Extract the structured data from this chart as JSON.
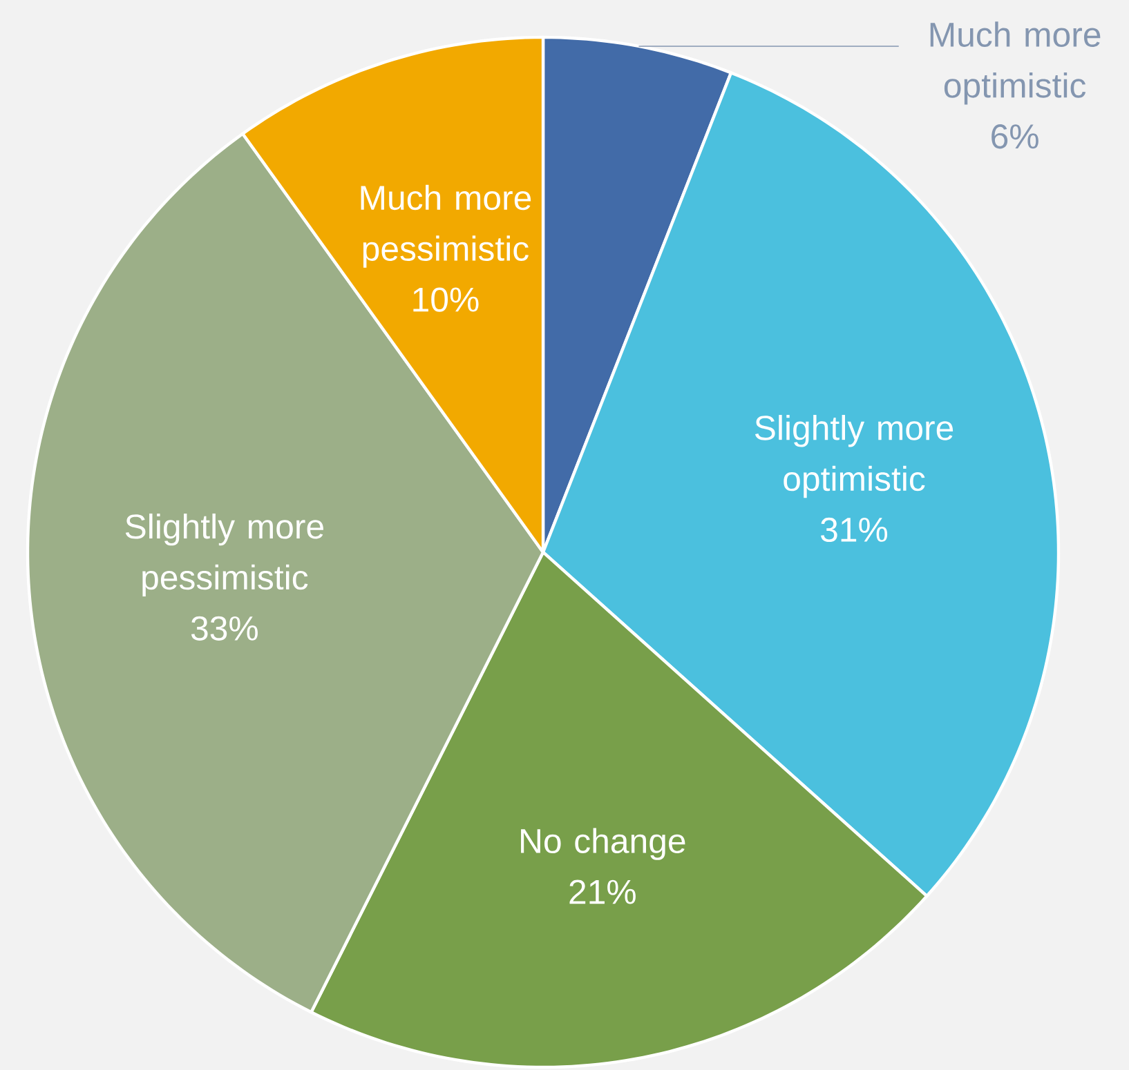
{
  "chart_data": {
    "type": "pie",
    "categories": [
      "Much more optimistic",
      "Slightly more optimistic",
      "No change",
      "Slightly more pessimistic",
      "Much more pessimistic"
    ],
    "values": [
      6,
      31,
      21,
      33,
      10
    ],
    "value_labels": [
      "6%",
      "31%",
      "21%",
      "33%",
      "10%"
    ],
    "colors": [
      "#426ba8",
      "#4bc0de",
      "#789f4a",
      "#9caf88",
      "#f2a900"
    ]
  }
}
